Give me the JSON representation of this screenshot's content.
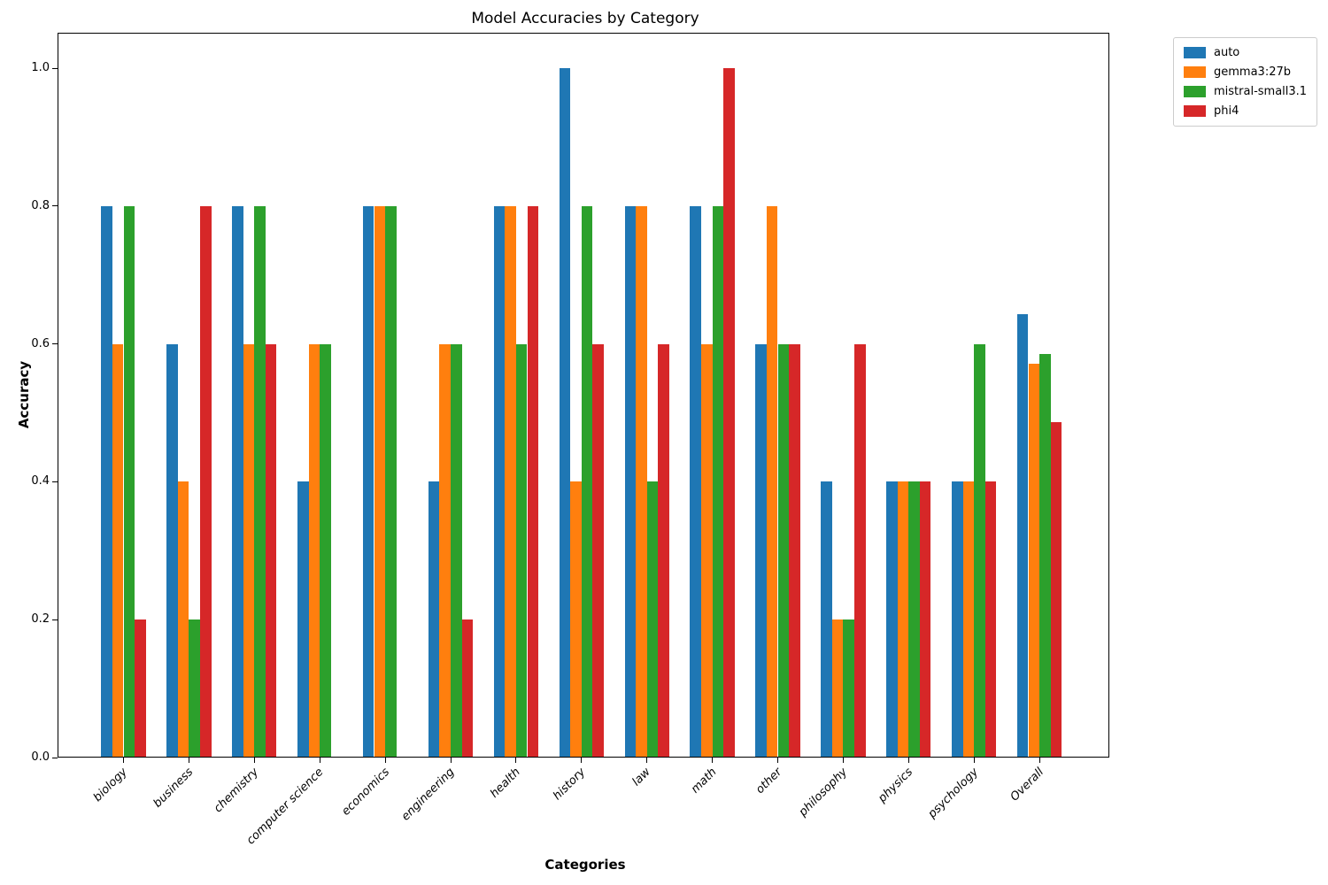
{
  "chart_data": {
    "type": "bar",
    "title": "Model Accuracies by Category",
    "xlabel": "Categories",
    "ylabel": "Accuracy",
    "ylim": [
      0,
      1.05
    ],
    "yticks": [
      0.0,
      0.2,
      0.4,
      0.6,
      0.8,
      1.0
    ],
    "grid": false,
    "legend_position": "upper-right-outside-axes",
    "categories": [
      "biology",
      "business",
      "chemistry",
      "computer science",
      "economics",
      "engineering",
      "health",
      "history",
      "law",
      "math",
      "other",
      "philosophy",
      "physics",
      "psychology",
      "Overall"
    ],
    "series": [
      {
        "name": "auto",
        "color": "#1f77b4",
        "values": [
          0.8,
          0.6,
          0.8,
          0.4,
          0.8,
          0.4,
          0.8,
          1.0,
          0.8,
          0.8,
          0.6,
          0.4,
          0.4,
          0.4,
          0.643
        ]
      },
      {
        "name": "gemma3:27b",
        "color": "#ff7f0e",
        "values": [
          0.6,
          0.4,
          0.6,
          0.6,
          0.8,
          0.6,
          0.8,
          0.4,
          0.8,
          0.6,
          0.8,
          0.2,
          0.4,
          0.4,
          0.571
        ]
      },
      {
        "name": "mistral-small3.1",
        "color": "#2ca02c",
        "values": [
          0.8,
          0.2,
          0.8,
          0.6,
          0.8,
          0.6,
          0.6,
          0.8,
          0.4,
          0.8,
          0.6,
          0.2,
          0.4,
          0.6,
          0.586
        ]
      },
      {
        "name": "phi4",
        "color": "#d62728",
        "values": [
          0.2,
          0.8,
          0.6,
          0.0,
          0.0,
          0.2,
          0.8,
          0.6,
          0.6,
          1.0,
          0.6,
          0.6,
          0.4,
          0.4,
          0.486
        ]
      }
    ]
  }
}
